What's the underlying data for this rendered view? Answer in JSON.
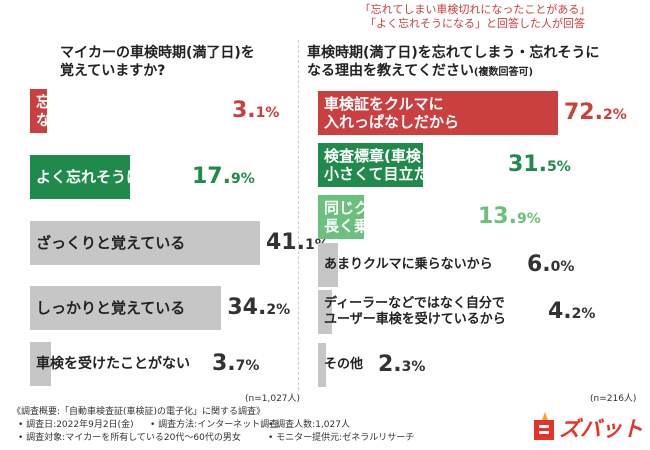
{
  "colors": {
    "red": "#c9403f",
    "green": "#1f8a4c",
    "lightgreen": "#6cc07e",
    "gray": "#c6c6c6",
    "subtitle_red": "#c9403f"
  },
  "left": {
    "title_line1": "マイカーの車検時期(満了日)を",
    "title_line2": "覚えていますか?",
    "n": "(n=1,027人)"
  },
  "right": {
    "subtitle_line1": "「忘れてしまい車検切れになったことがある」",
    "subtitle_line2": "「よく忘れそうになる」と回答した人が回答",
    "title_line1": "車検時期(満了日)を忘れてしまう・忘れそうに",
    "title_line2": "なる理由を教えてください",
    "title_suffix": "(複数回答可)",
    "n": "(n=216人)"
  },
  "chart_data": [
    {
      "type": "bar",
      "title": "マイカーの車検時期(満了日)を覚えていますか?",
      "unit": "%",
      "categories": [
        "忘れてしまい車検切れになったことがある",
        "よく忘れそうになる",
        "ざっくりと覚えている",
        "しっかりと覚えている",
        "車検を受けたことがない"
      ],
      "label_lines": [
        [
          "忘れてしまい車検切れに",
          "なったことがある"
        ],
        [
          "よく忘れそうになる"
        ],
        [
          "ざっくりと覚えている"
        ],
        [
          "しっかりと覚えている"
        ],
        [
          "車検を受けたことがない"
        ]
      ],
      "values": [
        3.1,
        17.9,
        41.1,
        34.2,
        3.7
      ],
      "value_text": [
        "3.1",
        "17.9",
        "41.1",
        "34.2",
        "3.7"
      ],
      "xlim": [
        0,
        41.1
      ]
    },
    {
      "type": "bar",
      "title": "車検時期(満了日)を忘れてしまう・忘れそうになる理由を教えてください(複数回答可)",
      "unit": "%",
      "categories": [
        "車検証をクルマに入れっぱなしだから",
        "検査標章(車検シール)が小さくて目立たないから",
        "同じクルマに長く乗っているから",
        "あまりクルマに乗らないから",
        "ディーラーなどではなく自分でユーザー車検を受けているから",
        "その他"
      ],
      "label_lines": [
        [
          "車検証をクルマに",
          "入れっぱなしだから"
        ],
        [
          "検査標章(車検シール)が",
          "小さくて目立たないから"
        ],
        [
          "同じクルマに",
          "長く乗っているから"
        ],
        [
          "あまりクルマに乗らないから"
        ],
        [
          "ディーラーなどではなく自分で",
          "ユーザー車検を受けているから"
        ],
        [
          "その他"
        ]
      ],
      "values": [
        72.2,
        31.5,
        13.9,
        6.0,
        4.2,
        2.3
      ],
      "value_text": [
        "72.2",
        "31.5",
        "13.9",
        "6.0",
        "4.2",
        "2.3"
      ],
      "xlim": [
        0,
        72.2
      ]
    }
  ],
  "footer": {
    "survey_line1": "《調査概要:「自動車検査証(車検証)の電子化」に関する調査》",
    "survey_date": "• 調査日:2022年9月2日(金)",
    "survey_method": "• 調査方法:インターネット調査",
    "survey_count": "• 調査人数:1,027人",
    "survey_target": "• 調査対象:マイカーを所有している20代〜60代の男女",
    "survey_monitor": "• モニター提供元:ゼネラルリサーチ",
    "logo_text": "ズバット"
  }
}
